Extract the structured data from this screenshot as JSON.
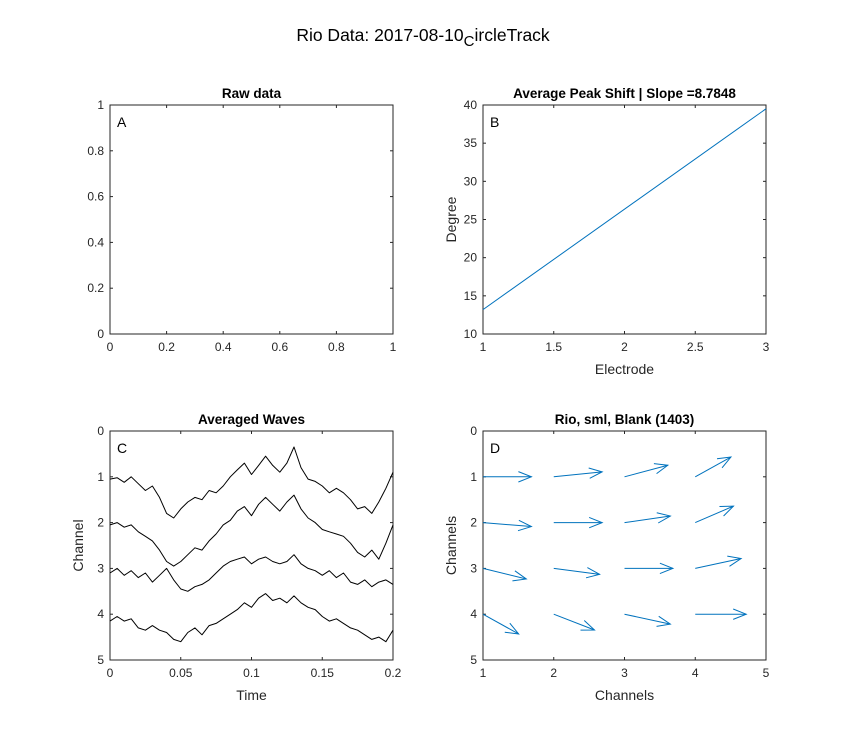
{
  "figure": {
    "title_main": "Rio Data: 2017-08-10",
    "title_sub": "C",
    "title_rest": "ircleTrack"
  },
  "colors": {
    "matlab_blue": "#0072BD",
    "black": "#000000",
    "axis": "#262626"
  },
  "chart_data": [
    {
      "id": "A",
      "type": "line",
      "title": "Raw data",
      "letter": "A",
      "xlabel": "",
      "ylabel": "",
      "xlim": [
        0,
        1
      ],
      "ylim": [
        0,
        1
      ],
      "xticks": [
        0,
        0.2,
        0.4,
        0.6,
        0.8,
        1
      ],
      "xtick_labels": [
        "0",
        "0.2",
        "0.4",
        "0.6",
        "0.8",
        "1"
      ],
      "yticks": [
        0,
        0.2,
        0.4,
        0.6,
        0.8,
        1
      ],
      "ytick_labels": [
        "0",
        "0.2",
        "0.4",
        "0.6",
        "0.8",
        "1"
      ],
      "series": []
    },
    {
      "id": "B",
      "type": "line",
      "title": "Average Peak Shift | Slope =8.7848",
      "letter": "B",
      "xlabel": "Electrode",
      "ylabel": "Degree",
      "xlim": [
        1,
        3
      ],
      "ylim": [
        10,
        40
      ],
      "xticks": [
        1,
        1.5,
        2,
        2.5,
        3
      ],
      "xtick_labels": [
        "1",
        "1.5",
        "2",
        "2.5",
        "3"
      ],
      "yticks": [
        10,
        15,
        20,
        25,
        30,
        35,
        40
      ],
      "ytick_labels": [
        "10",
        "15",
        "20",
        "25",
        "30",
        "35",
        "40"
      ],
      "series": [
        {
          "x": [
            1,
            3
          ],
          "y": [
            13.2,
            39.5
          ],
          "color": "#0072BD"
        }
      ]
    },
    {
      "id": "C",
      "type": "line",
      "title": "Averaged Waves",
      "letter": "C",
      "xlabel": "Time",
      "ylabel": "Channel",
      "xlim": [
        0,
        0.2
      ],
      "ylim": [
        0,
        5
      ],
      "y_reversed": true,
      "xticks": [
        0,
        0.05,
        0.1,
        0.15,
        0.2
      ],
      "xtick_labels": [
        "0",
        "0.05",
        "0.1",
        "0.15",
        "0.2"
      ],
      "yticks": [
        0,
        1,
        2,
        3,
        4,
        5
      ],
      "ytick_labels": [
        "0",
        "1",
        "2",
        "3",
        "4",
        "5"
      ],
      "series": [
        {
          "color": "#000000",
          "x": [
            0,
            0.005,
            0.01,
            0.015,
            0.02,
            0.025,
            0.03,
            0.035,
            0.04,
            0.045,
            0.05,
            0.055,
            0.06,
            0.065,
            0.07,
            0.075,
            0.08,
            0.085,
            0.09,
            0.095,
            0.1,
            0.105,
            0.11,
            0.115,
            0.12,
            0.125,
            0.13,
            0.135,
            0.14,
            0.145,
            0.15,
            0.155,
            0.16,
            0.165,
            0.17,
            0.175,
            0.18,
            0.185,
            0.19,
            0.195,
            0.2
          ],
          "y": [
            1.05,
            1.02,
            1.12,
            1.0,
            1.15,
            1.3,
            1.2,
            1.45,
            1.8,
            1.9,
            1.7,
            1.55,
            1.45,
            1.5,
            1.3,
            1.35,
            1.2,
            1.0,
            0.85,
            0.7,
            0.95,
            0.75,
            0.55,
            0.75,
            0.9,
            0.7,
            0.35,
            0.8,
            1.05,
            1.1,
            1.2,
            1.35,
            1.25,
            1.35,
            1.5,
            1.7,
            1.65,
            1.8,
            1.55,
            1.25,
            0.9
          ]
        },
        {
          "color": "#000000",
          "x": [
            0,
            0.005,
            0.01,
            0.015,
            0.02,
            0.025,
            0.03,
            0.035,
            0.04,
            0.045,
            0.05,
            0.055,
            0.06,
            0.065,
            0.07,
            0.075,
            0.08,
            0.085,
            0.09,
            0.095,
            0.1,
            0.105,
            0.11,
            0.115,
            0.12,
            0.125,
            0.13,
            0.135,
            0.14,
            0.145,
            0.15,
            0.155,
            0.16,
            0.165,
            0.17,
            0.175,
            0.18,
            0.185,
            0.19,
            0.195,
            0.2
          ],
          "y": [
            2.05,
            2.0,
            2.1,
            2.05,
            2.2,
            2.3,
            2.4,
            2.6,
            2.85,
            2.95,
            2.85,
            2.7,
            2.55,
            2.6,
            2.4,
            2.25,
            2.05,
            1.95,
            1.75,
            1.65,
            1.85,
            1.6,
            1.45,
            1.6,
            1.75,
            1.55,
            1.4,
            1.7,
            1.9,
            2.0,
            2.15,
            2.2,
            2.25,
            2.3,
            2.45,
            2.65,
            2.75,
            2.6,
            2.8,
            2.45,
            2.05
          ]
        },
        {
          "color": "#000000",
          "x": [
            0,
            0.005,
            0.01,
            0.015,
            0.02,
            0.025,
            0.03,
            0.035,
            0.04,
            0.045,
            0.05,
            0.055,
            0.06,
            0.065,
            0.07,
            0.075,
            0.08,
            0.085,
            0.09,
            0.095,
            0.1,
            0.105,
            0.11,
            0.115,
            0.12,
            0.125,
            0.13,
            0.135,
            0.14,
            0.145,
            0.15,
            0.155,
            0.16,
            0.165,
            0.17,
            0.175,
            0.18,
            0.185,
            0.19,
            0.195,
            0.2
          ],
          "y": [
            3.1,
            3.0,
            3.15,
            3.05,
            3.2,
            3.1,
            3.3,
            3.15,
            3.0,
            3.25,
            3.45,
            3.5,
            3.4,
            3.35,
            3.25,
            3.1,
            2.95,
            2.85,
            2.8,
            2.75,
            2.9,
            2.8,
            2.75,
            2.85,
            2.9,
            2.85,
            2.7,
            2.9,
            3.0,
            3.05,
            3.15,
            3.05,
            3.2,
            3.1,
            3.3,
            3.35,
            3.25,
            3.4,
            3.3,
            3.25,
            3.35
          ]
        },
        {
          "color": "#000000",
          "x": [
            0,
            0.005,
            0.01,
            0.015,
            0.02,
            0.025,
            0.03,
            0.035,
            0.04,
            0.045,
            0.05,
            0.055,
            0.06,
            0.065,
            0.07,
            0.075,
            0.08,
            0.085,
            0.09,
            0.095,
            0.1,
            0.105,
            0.11,
            0.115,
            0.12,
            0.125,
            0.13,
            0.135,
            0.14,
            0.145,
            0.15,
            0.155,
            0.16,
            0.165,
            0.17,
            0.175,
            0.18,
            0.185,
            0.19,
            0.195,
            0.2
          ],
          "y": [
            4.15,
            4.05,
            4.15,
            4.1,
            4.3,
            4.35,
            4.25,
            4.35,
            4.4,
            4.55,
            4.6,
            4.4,
            4.3,
            4.45,
            4.25,
            4.2,
            4.1,
            4.0,
            3.9,
            3.75,
            3.85,
            3.65,
            3.55,
            3.7,
            3.65,
            3.75,
            3.6,
            3.75,
            3.85,
            3.9,
            4.05,
            4.15,
            4.1,
            4.2,
            4.3,
            4.35,
            4.45,
            4.55,
            4.5,
            4.6,
            4.35
          ]
        }
      ]
    },
    {
      "id": "D",
      "type": "quiver",
      "title": "Rio, sml, Blank (1403)",
      "letter": "D",
      "xlabel": "Channels",
      "ylabel": "Channels",
      "xlim": [
        1,
        5
      ],
      "ylim": [
        0,
        5
      ],
      "y_reversed": true,
      "xticks": [
        1,
        2,
        3,
        4,
        5
      ],
      "xtick_labels": [
        "1",
        "2",
        "3",
        "4",
        "5"
      ],
      "yticks": [
        0,
        1,
        2,
        3,
        4,
        5
      ],
      "ytick_labels": [
        "0",
        "1",
        "2",
        "3",
        "4",
        "5"
      ],
      "color": "#0072BD",
      "arrows": [
        {
          "x": 1,
          "y": 1,
          "u": 0.95,
          "v": 0.0
        },
        {
          "x": 2,
          "y": 1,
          "u": 0.95,
          "v": -0.15
        },
        {
          "x": 3,
          "y": 1,
          "u": 0.85,
          "v": -0.35
        },
        {
          "x": 4,
          "y": 1,
          "u": 0.7,
          "v": -0.6
        },
        {
          "x": 1,
          "y": 2,
          "u": 0.95,
          "v": 0.12
        },
        {
          "x": 2,
          "y": 2,
          "u": 0.95,
          "v": 0.0
        },
        {
          "x": 3,
          "y": 2,
          "u": 0.9,
          "v": -0.2
        },
        {
          "x": 4,
          "y": 2,
          "u": 0.75,
          "v": -0.5
        },
        {
          "x": 1,
          "y": 3,
          "u": 0.85,
          "v": 0.32
        },
        {
          "x": 2,
          "y": 3,
          "u": 0.9,
          "v": 0.18
        },
        {
          "x": 3,
          "y": 3,
          "u": 0.95,
          "v": 0.0
        },
        {
          "x": 4,
          "y": 3,
          "u": 0.9,
          "v": -0.3
        },
        {
          "x": 1,
          "y": 4,
          "u": 0.7,
          "v": 0.6
        },
        {
          "x": 2,
          "y": 4,
          "u": 0.8,
          "v": 0.48
        },
        {
          "x": 3,
          "y": 4,
          "u": 0.9,
          "v": 0.3
        },
        {
          "x": 4,
          "y": 4,
          "u": 1.0,
          "v": 0.0
        }
      ]
    }
  ]
}
